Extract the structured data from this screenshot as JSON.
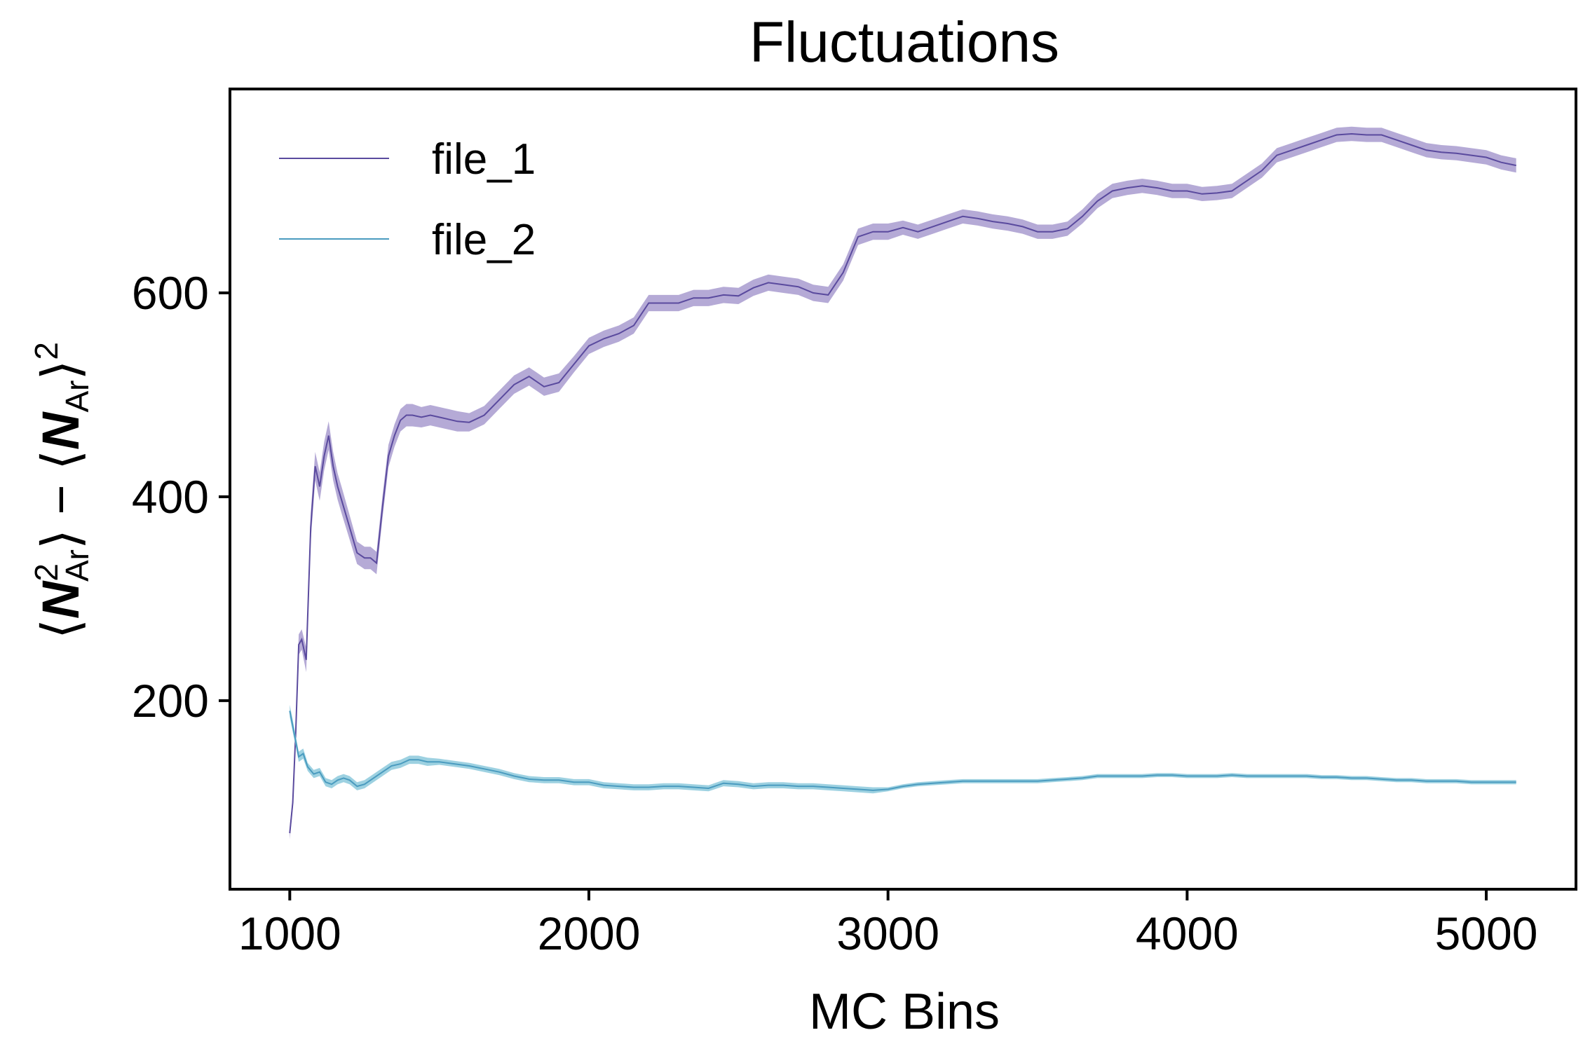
{
  "chart_data": {
    "type": "line",
    "title": "Fluctuations",
    "xlabel": "MC Bins",
    "ylabel": "⟨N²Ar⟩ − ⟨NAr⟩²",
    "xlim": [
      800,
      5300
    ],
    "ylim": [
      15,
      800
    ],
    "xticks": [
      1000,
      2000,
      3000,
      4000,
      5000
    ],
    "xtick_labels": [
      "1000",
      "2000",
      "3000",
      "4000",
      "5000"
    ],
    "yticks": [
      200,
      400,
      600
    ],
    "ytick_labels": [
      "200",
      "400",
      "600"
    ],
    "grid": false,
    "legend_position": "top-left",
    "shaded_error_band": true,
    "series": [
      {
        "name": "file_1",
        "color": "#5a4a9e",
        "band_color": "#a89bcf",
        "x": [
          1000,
          1010,
          1020,
          1030,
          1040,
          1055,
          1070,
          1085,
          1100,
          1115,
          1130,
          1145,
          1160,
          1175,
          1200,
          1225,
          1250,
          1270,
          1290,
          1310,
          1330,
          1350,
          1370,
          1390,
          1410,
          1440,
          1470,
          1500,
          1530,
          1560,
          1600,
          1650,
          1700,
          1750,
          1800,
          1850,
          1900,
          1950,
          2000,
          2050,
          2100,
          2150,
          2200,
          2250,
          2300,
          2350,
          2400,
          2450,
          2500,
          2550,
          2600,
          2650,
          2700,
          2750,
          2800,
          2850,
          2900,
          2950,
          3000,
          3050,
          3100,
          3150,
          3200,
          3250,
          3300,
          3350,
          3400,
          3450,
          3500,
          3550,
          3600,
          3650,
          3700,
          3750,
          3800,
          3850,
          3900,
          3950,
          4000,
          4050,
          4100,
          4150,
          4200,
          4250,
          4300,
          4350,
          4400,
          4450,
          4500,
          4550,
          4600,
          4650,
          4700,
          4750,
          4800,
          4850,
          4900,
          4950,
          5000,
          5050,
          5100
        ],
        "y": [
          70,
          100,
          170,
          255,
          260,
          240,
          370,
          430,
          410,
          440,
          460,
          430,
          410,
          395,
          370,
          345,
          340,
          340,
          335,
          390,
          440,
          460,
          475,
          480,
          480,
          478,
          480,
          478,
          476,
          474,
          473,
          480,
          495,
          510,
          518,
          508,
          512,
          530,
          548,
          555,
          560,
          568,
          590,
          590,
          590,
          595,
          595,
          598,
          597,
          605,
          610,
          608,
          606,
          600,
          598,
          620,
          655,
          660,
          660,
          664,
          660,
          665,
          670,
          675,
          673,
          670,
          668,
          665,
          660,
          660,
          663,
          675,
          690,
          700,
          703,
          705,
          703,
          700,
          700,
          697,
          698,
          700,
          710,
          720,
          735,
          740,
          745,
          750,
          755,
          756,
          755,
          755,
          750,
          745,
          740,
          738,
          737,
          735,
          733,
          728,
          725
        ],
        "err": [
          6,
          6,
          8,
          10,
          10,
          12,
          14,
          14,
          14,
          14,
          14,
          14,
          13,
          13,
          12,
          11,
          11,
          11,
          11,
          11,
          11,
          11,
          11,
          11,
          11,
          10,
          10,
          10,
          10,
          10,
          9,
          9,
          9,
          9,
          9,
          9,
          9,
          8,
          8,
          8,
          8,
          8,
          8,
          8,
          8,
          8,
          8,
          8,
          8,
          8,
          8,
          8,
          8,
          8,
          8,
          8,
          8,
          8,
          8,
          7,
          7,
          7,
          7,
          7,
          7,
          7,
          7,
          7,
          7,
          7,
          7,
          7,
          7,
          7,
          7,
          7,
          7,
          7,
          7,
          7,
          7,
          7,
          7,
          7,
          7,
          7,
          7,
          7,
          7,
          7,
          7,
          7,
          7,
          7,
          7,
          7,
          7,
          7,
          7,
          7,
          7
        ]
      },
      {
        "name": "file_2",
        "color": "#4a9bbf",
        "band_color": "#8cc9dc",
        "x": [
          1000,
          1010,
          1020,
          1030,
          1045,
          1060,
          1080,
          1100,
          1120,
          1140,
          1160,
          1180,
          1200,
          1225,
          1250,
          1280,
          1310,
          1340,
          1370,
          1400,
          1430,
          1460,
          1500,
          1550,
          1600,
          1650,
          1700,
          1750,
          1800,
          1850,
          1900,
          1950,
          2000,
          2050,
          2100,
          2150,
          2200,
          2250,
          2300,
          2350,
          2400,
          2450,
          2500,
          2550,
          2600,
          2650,
          2700,
          2750,
          2800,
          2850,
          2900,
          2950,
          3000,
          3050,
          3100,
          3150,
          3200,
          3250,
          3300,
          3350,
          3400,
          3450,
          3500,
          3550,
          3600,
          3650,
          3700,
          3750,
          3800,
          3850,
          3900,
          3950,
          4000,
          4050,
          4100,
          4150,
          4200,
          4250,
          4300,
          4350,
          4400,
          4450,
          4500,
          4550,
          4600,
          4650,
          4700,
          4750,
          4800,
          4850,
          4900,
          4950,
          5000,
          5050,
          5100
        ],
        "y": [
          190,
          175,
          160,
          145,
          148,
          135,
          128,
          130,
          120,
          118,
          122,
          124,
          122,
          116,
          118,
          124,
          130,
          136,
          138,
          142,
          142,
          140,
          140,
          138,
          136,
          133,
          130,
          126,
          123,
          122,
          122,
          120,
          120,
          117,
          116,
          115,
          115,
          116,
          116,
          115,
          114,
          119,
          118,
          116,
          117,
          117,
          116,
          116,
          115,
          114,
          113,
          112,
          113,
          116,
          118,
          119,
          120,
          121,
          121,
          121,
          121,
          121,
          121,
          122,
          123,
          124,
          126,
          126,
          126,
          126,
          127,
          127,
          126,
          126,
          126,
          127,
          126,
          126,
          126,
          126,
          126,
          125,
          125,
          124,
          124,
          123,
          122,
          122,
          121,
          121,
          121,
          120,
          120,
          120,
          120
        ],
        "err": [
          6,
          6,
          5,
          5,
          5,
          4,
          4,
          4,
          4,
          4,
          4,
          4,
          4,
          4,
          4,
          4,
          4,
          4,
          4,
          4,
          4,
          4,
          3,
          3,
          3,
          3,
          3,
          3,
          3,
          3,
          3,
          3,
          3,
          3,
          3,
          3,
          3,
          3,
          3,
          3,
          3,
          3,
          3,
          3,
          3,
          3,
          3,
          3,
          3,
          3,
          3,
          3,
          2,
          2,
          2,
          2,
          2,
          2,
          2,
          2,
          2,
          2,
          2,
          2,
          2,
          2,
          2,
          2,
          2,
          2,
          2,
          2,
          2,
          2,
          2,
          2,
          2,
          2,
          2,
          2,
          2,
          2,
          2,
          2,
          2,
          2,
          2,
          2,
          2,
          2,
          2,
          2,
          2,
          2,
          2
        ]
      }
    ]
  }
}
